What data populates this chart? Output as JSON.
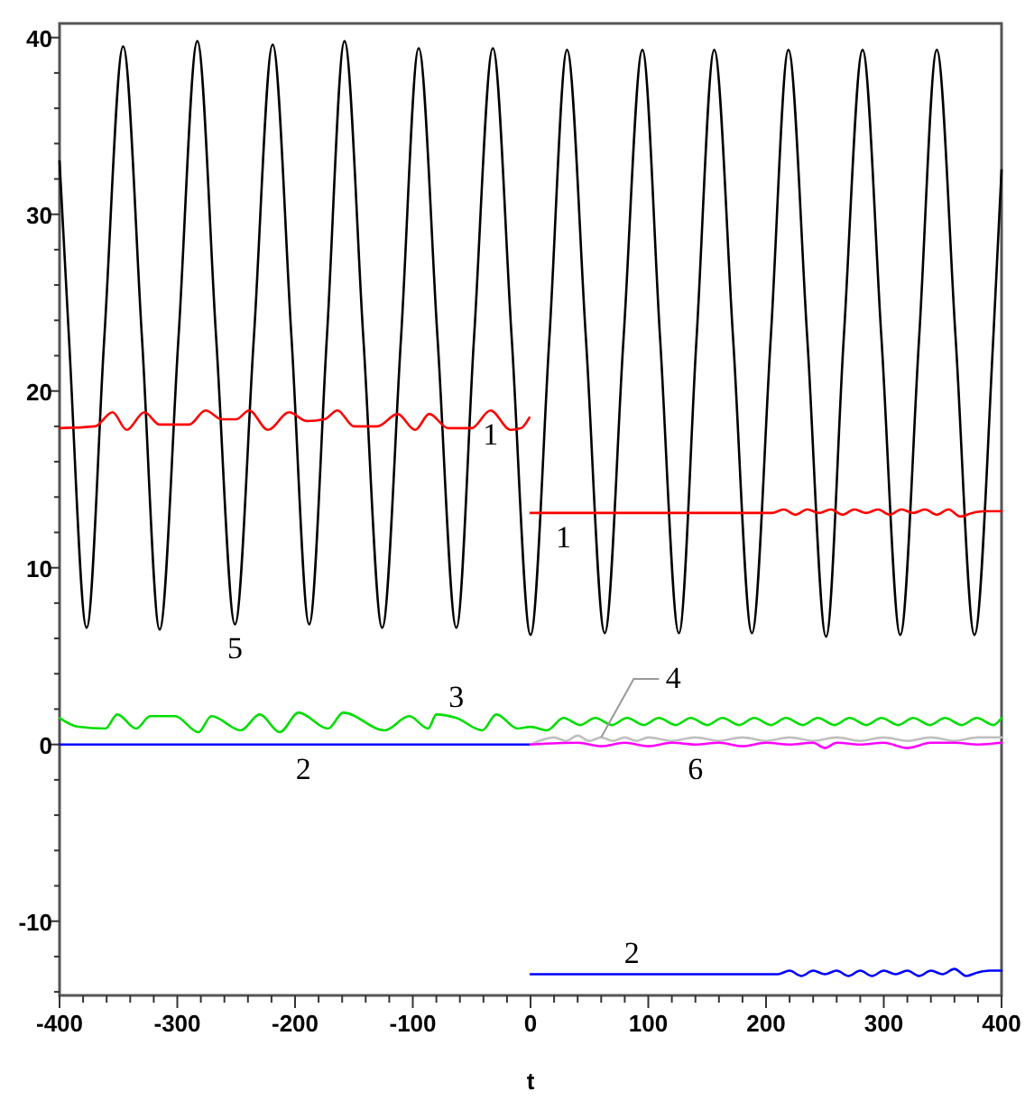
{
  "chart_data": {
    "type": "line",
    "xlabel": "t",
    "xlim": [
      -400,
      400
    ],
    "ylim": [
      -14.2,
      40.8
    ],
    "xticks": [
      -400,
      {
        "value": -380,
        "label": null
      },
      {
        "value": -360,
        "label": null
      },
      {
        "value": -340,
        "label": null
      },
      {
        "value": -320,
        "label": null
      },
      -300,
      {
        "value": -280,
        "label": null
      },
      {
        "value": -260,
        "label": null
      },
      {
        "value": -240,
        "label": null
      },
      {
        "value": -220,
        "label": null
      },
      -200,
      {
        "value": -180,
        "label": null
      },
      {
        "value": -160,
        "label": null
      },
      {
        "value": -140,
        "label": null
      },
      {
        "value": -120,
        "label": null
      },
      -100,
      {
        "value": -80,
        "label": null
      },
      {
        "value": -60,
        "label": null
      },
      {
        "value": -40,
        "label": null
      },
      {
        "value": -20,
        "label": null
      },
      0,
      {
        "value": 20,
        "label": null
      },
      {
        "value": 40,
        "label": null
      },
      {
        "value": 60,
        "label": null
      },
      {
        "value": 80,
        "label": null
      },
      100,
      {
        "value": 120,
        "label": null
      },
      {
        "value": 140,
        "label": null
      },
      {
        "value": 160,
        "label": null
      },
      {
        "value": 180,
        "label": null
      },
      200,
      {
        "value": 220,
        "label": null
      },
      {
        "value": 240,
        "label": null
      },
      {
        "value": 260,
        "label": null
      },
      {
        "value": 280,
        "label": null
      },
      300,
      {
        "value": 320,
        "label": null
      },
      {
        "value": 340,
        "label": null
      },
      {
        "value": 360,
        "label": null
      },
      {
        "value": 380,
        "label": null
      },
      400
    ],
    "yticks": [
      {
        "value": -14,
        "label": null
      },
      {
        "value": -12,
        "label": null
      },
      -10,
      {
        "value": -8,
        "label": null
      },
      {
        "value": -6,
        "label": null
      },
      {
        "value": -4,
        "label": null
      },
      {
        "value": -2,
        "label": null
      },
      0,
      {
        "value": 2,
        "label": null
      },
      {
        "value": 4,
        "label": null
      },
      {
        "value": 6,
        "label": null
      },
      {
        "value": 8,
        "label": null
      },
      10,
      {
        "value": 12,
        "label": null
      },
      {
        "value": 14,
        "label": null
      },
      {
        "value": 16,
        "label": null
      },
      {
        "value": 18,
        "label": null
      },
      20,
      {
        "value": 22,
        "label": null
      },
      {
        "value": 24,
        "label": null
      },
      {
        "value": 26,
        "label": null
      },
      {
        "value": 28,
        "label": null
      },
      30,
      {
        "value": 32,
        "label": null
      },
      {
        "value": 34,
        "label": null
      },
      {
        "value": 36,
        "label": null
      },
      {
        "value": 38,
        "label": null
      },
      40
    ],
    "series": [
      {
        "color": "#000000",
        "x": [
          -400,
          -392,
          -377,
          -362,
          -346,
          -330,
          -315,
          -299,
          -283,
          -267,
          -251,
          -235,
          -219,
          -203,
          -188,
          -173,
          -158,
          -142,
          -126,
          -110,
          -95,
          -79,
          -63,
          -48,
          -32,
          -16,
          0,
          16,
          31,
          47,
          63,
          79,
          95,
          110,
          126,
          141,
          156,
          172,
          188,
          204,
          219,
          235,
          251,
          266,
          282,
          298,
          314,
          330,
          345,
          361,
          377,
          393,
          400
        ],
        "values": [
          33,
          23,
          6.6,
          23,
          39.5,
          23,
          6.5,
          23,
          39.8,
          23,
          6.8,
          23,
          39.6,
          23,
          6.8,
          23,
          39.8,
          23,
          6.6,
          23,
          39.4,
          23,
          6.6,
          23,
          39.4,
          23,
          6.2,
          23,
          39.3,
          23,
          6.3,
          23,
          39.3,
          23,
          6.3,
          23,
          39.3,
          23,
          6.3,
          23,
          39.3,
          23,
          6.1,
          23,
          39.3,
          23,
          6.2,
          23,
          39.3,
          23,
          6.2,
          23,
          32.5
        ]
      },
      {
        "color": "#ff0000",
        "x": [
          -400,
          -370,
          -355,
          -343,
          -328,
          -315,
          -290,
          -276,
          -262,
          -250,
          -239,
          -223,
          -205,
          -190,
          -175,
          -164,
          -150,
          -130,
          -113,
          -98,
          -86,
          -70,
          -50,
          -34,
          -17,
          -8,
          -1
        ],
        "values": [
          17.9,
          18.0,
          18.8,
          17.8,
          18.8,
          18.1,
          18.1,
          18.9,
          18.4,
          18.4,
          18.9,
          17.8,
          18.8,
          18.3,
          18.4,
          18.9,
          18.0,
          18.0,
          18.7,
          17.8,
          18.7,
          17.9,
          17.9,
          18.9,
          17.8,
          17.9,
          18.5
        ]
      },
      {
        "color": "#ff0000",
        "x": [
          0,
          205,
          215,
          225,
          235,
          245,
          255,
          265,
          275,
          285,
          295,
          305,
          315,
          325,
          335,
          345,
          355,
          365,
          375,
          385,
          400
        ],
        "values": [
          13.1,
          13.1,
          13.3,
          13.0,
          13.3,
          13.1,
          13.3,
          13.0,
          13.3,
          13.1,
          13.3,
          13.0,
          13.3,
          13.1,
          13.3,
          13.0,
          13.3,
          12.9,
          13.1,
          13.2,
          13.2
        ]
      },
      {
        "color": "#0000ff",
        "x": [
          -400,
          0
        ],
        "values": [
          0,
          0
        ]
      },
      {
        "color": "#0000ff",
        "x": [
          0,
          210,
          220,
          230,
          240,
          250,
          260,
          270,
          280,
          290,
          300,
          310,
          320,
          330,
          340,
          350,
          360,
          370,
          380,
          390,
          400
        ],
        "values": [
          -13.0,
          -13.0,
          -12.8,
          -13.1,
          -12.8,
          -13.0,
          -12.8,
          -13.1,
          -12.8,
          -13.1,
          -12.8,
          -13.0,
          -12.8,
          -13.1,
          -12.8,
          -13.0,
          -12.7,
          -13.1,
          -12.9,
          -12.8,
          -12.8
        ]
      },
      {
        "color": "#00dd00",
        "x": [
          -400,
          -384,
          -361,
          -351,
          -335,
          -323,
          -302,
          -282,
          -271,
          -246,
          -230,
          -213,
          -197,
          -172,
          -159,
          -124,
          -103,
          -87,
          -80,
          -63,
          -41,
          -29,
          -11,
          0,
          14,
          28,
          42,
          55,
          69,
          82,
          96,
          109,
          123,
          136,
          150,
          163,
          177,
          190,
          204,
          217,
          231,
          244,
          258,
          271,
          285,
          298,
          312,
          325,
          339,
          352,
          366,
          379,
          393,
          400
        ],
        "values": [
          1.5,
          1.0,
          0.9,
          1.7,
          0.9,
          1.6,
          1.6,
          0.7,
          1.6,
          0.8,
          1.7,
          0.7,
          1.8,
          0.9,
          1.8,
          0.8,
          1.6,
          0.9,
          1.7,
          1.5,
          0.8,
          1.7,
          0.9,
          1.0,
          0.8,
          1.5,
          1.1,
          1.5,
          1.1,
          1.5,
          1.1,
          1.5,
          1.1,
          1.5,
          1.1,
          1.5,
          1.1,
          1.5,
          1.1,
          1.5,
          1.1,
          1.5,
          1.1,
          1.5,
          1.1,
          1.5,
          1.1,
          1.5,
          1.1,
          1.5,
          1.1,
          1.5,
          1.1,
          1.5
        ]
      },
      {
        "color": "#c0c0c0",
        "x": [
          0,
          20,
          30,
          40,
          50,
          60,
          70,
          80,
          90,
          100,
          120,
          140,
          160,
          180,
          200,
          220,
          240,
          260,
          280,
          300,
          320,
          340,
          360,
          380,
          400
        ],
        "values": [
          0,
          0.4,
          0.2,
          0.5,
          0.2,
          0.4,
          0.2,
          0.4,
          0.2,
          0.4,
          0.2,
          0.4,
          0.2,
          0.4,
          0.2,
          0.4,
          0.2,
          0.4,
          0.2,
          0.4,
          0.2,
          0.4,
          0.2,
          0.4,
          0.4
        ]
      },
      {
        "color": "#ff00ff",
        "x": [
          0,
          40,
          60,
          80,
          100,
          120,
          140,
          160,
          180,
          200,
          220,
          240,
          250,
          260,
          280,
          300,
          320,
          340,
          360,
          380,
          400
        ],
        "values": [
          0,
          0.1,
          -0.1,
          0.1,
          -0.1,
          0.1,
          0,
          0.1,
          -0.1,
          0.1,
          0,
          0.1,
          -0.2,
          0.1,
          0,
          0.1,
          -0.2,
          0.1,
          0.1,
          0,
          0.1
        ]
      }
    ],
    "annotations": [
      {
        "text": "1",
        "x": -34,
        "y": 18.9
      },
      {
        "text": "1",
        "x": 28,
        "y": 13.1
      },
      {
        "text": "5",
        "x": -251,
        "y": 6.8
      },
      {
        "text": "3",
        "x": -63,
        "y": 1.5
      },
      {
        "text": "2",
        "x": -193,
        "y": 0
      },
      {
        "text": "4",
        "x": 60,
        "y": 0.4
      },
      {
        "text": "6",
        "x": 140,
        "y": 0
      },
      {
        "text": "2",
        "x": 86,
        "y": -13.0
      }
    ]
  }
}
